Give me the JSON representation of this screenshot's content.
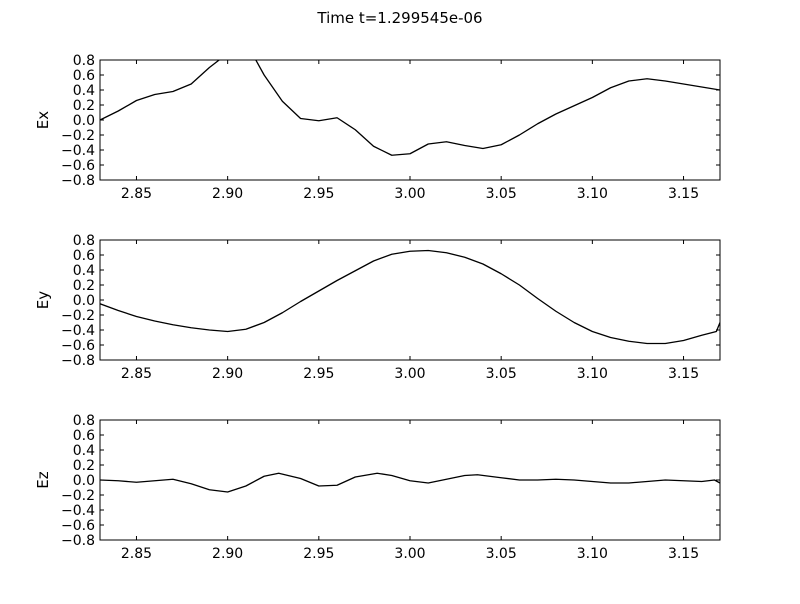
{
  "figure": {
    "title": "Time t=1.299545e-06"
  },
  "chart_data": [
    {
      "type": "line",
      "ylabel": "Ex",
      "xlabel": "",
      "xlim": [
        2.83,
        3.17
      ],
      "ylim": [
        -0.8,
        0.8
      ],
      "xticks": [
        "2.85",
        "2.90",
        "2.95",
        "3.00",
        "3.05",
        "3.10",
        "3.15"
      ],
      "yticks": [
        "0.8",
        "0.6",
        "0.4",
        "0.2",
        "0.0",
        "−0.2",
        "−0.4",
        "−0.6",
        "−0.8"
      ],
      "grid": false,
      "color": "#000000",
      "x": [
        2.83,
        2.84,
        2.85,
        2.86,
        2.87,
        2.88,
        2.89,
        2.898,
        2.904,
        2.91,
        2.915,
        2.92,
        2.93,
        2.94,
        2.95,
        2.96,
        2.97,
        2.98,
        2.99,
        3.0,
        3.01,
        3.02,
        3.03,
        3.04,
        3.05,
        3.06,
        3.07,
        3.08,
        3.09,
        3.1,
        3.11,
        3.12,
        3.13,
        3.14,
        3.15,
        3.16,
        3.17
      ],
      "y": [
        0.0,
        0.12,
        0.26,
        0.34,
        0.38,
        0.48,
        0.7,
        0.85,
        0.86,
        0.85,
        0.82,
        0.6,
        0.25,
        0.02,
        -0.01,
        0.03,
        -0.13,
        -0.35,
        -0.47,
        -0.45,
        -0.32,
        -0.29,
        -0.34,
        -0.38,
        -0.33,
        -0.2,
        -0.05,
        0.08,
        0.19,
        0.3,
        0.43,
        0.52,
        0.55,
        0.52,
        0.48,
        0.44,
        0.4
      ]
    },
    {
      "type": "line",
      "ylabel": "Ey",
      "xlabel": "",
      "xlim": [
        2.83,
        3.17
      ],
      "ylim": [
        -0.8,
        0.8
      ],
      "xticks": [
        "2.85",
        "2.90",
        "2.95",
        "3.00",
        "3.05",
        "3.10",
        "3.15"
      ],
      "yticks": [
        "0.8",
        "0.6",
        "0.4",
        "0.2",
        "0.0",
        "−0.2",
        "−0.4",
        "−0.6",
        "−0.8"
      ],
      "grid": false,
      "color": "#000000",
      "x": [
        2.83,
        2.84,
        2.85,
        2.86,
        2.87,
        2.88,
        2.89,
        2.9,
        2.91,
        2.92,
        2.93,
        2.94,
        2.95,
        2.96,
        2.97,
        2.98,
        2.99,
        3.0,
        3.01,
        3.02,
        3.03,
        3.04,
        3.05,
        3.06,
        3.07,
        3.08,
        3.09,
        3.1,
        3.11,
        3.12,
        3.13,
        3.14,
        3.15,
        3.16,
        3.168,
        3.17
      ],
      "y": [
        -0.05,
        -0.14,
        -0.22,
        -0.28,
        -0.33,
        -0.37,
        -0.4,
        -0.42,
        -0.39,
        -0.3,
        -0.17,
        -0.02,
        0.12,
        0.26,
        0.39,
        0.52,
        0.61,
        0.65,
        0.66,
        0.63,
        0.57,
        0.48,
        0.35,
        0.2,
        0.02,
        -0.15,
        -0.3,
        -0.42,
        -0.5,
        -0.55,
        -0.58,
        -0.58,
        -0.54,
        -0.47,
        -0.42,
        -0.3
      ]
    },
    {
      "type": "line",
      "ylabel": "Ez",
      "xlabel": "",
      "xlim": [
        2.83,
        3.17
      ],
      "ylim": [
        -0.8,
        0.8
      ],
      "xticks": [
        "2.85",
        "2.90",
        "2.95",
        "3.00",
        "3.05",
        "3.10",
        "3.15"
      ],
      "yticks": [
        "0.8",
        "0.6",
        "0.4",
        "0.2",
        "0.0",
        "−0.2",
        "−0.4",
        "−0.6",
        "−0.8"
      ],
      "grid": false,
      "color": "#000000",
      "x": [
        2.83,
        2.84,
        2.85,
        2.86,
        2.87,
        2.88,
        2.89,
        2.9,
        2.91,
        2.92,
        2.928,
        2.94,
        2.95,
        2.96,
        2.97,
        2.982,
        2.99,
        3.0,
        3.01,
        3.02,
        3.03,
        3.037,
        3.05,
        3.06,
        3.07,
        3.08,
        3.09,
        3.1,
        3.11,
        3.12,
        3.13,
        3.14,
        3.15,
        3.16,
        3.167,
        3.17
      ],
      "y": [
        0.0,
        -0.01,
        -0.03,
        -0.01,
        0.01,
        -0.05,
        -0.13,
        -0.16,
        -0.08,
        0.05,
        0.09,
        0.02,
        -0.08,
        -0.07,
        0.04,
        0.09,
        0.06,
        -0.01,
        -0.04,
        0.01,
        0.06,
        0.07,
        0.03,
        0.0,
        0.0,
        0.01,
        0.0,
        -0.02,
        -0.04,
        -0.04,
        -0.02,
        0.0,
        -0.01,
        -0.02,
        0.0,
        -0.04
      ]
    }
  ]
}
